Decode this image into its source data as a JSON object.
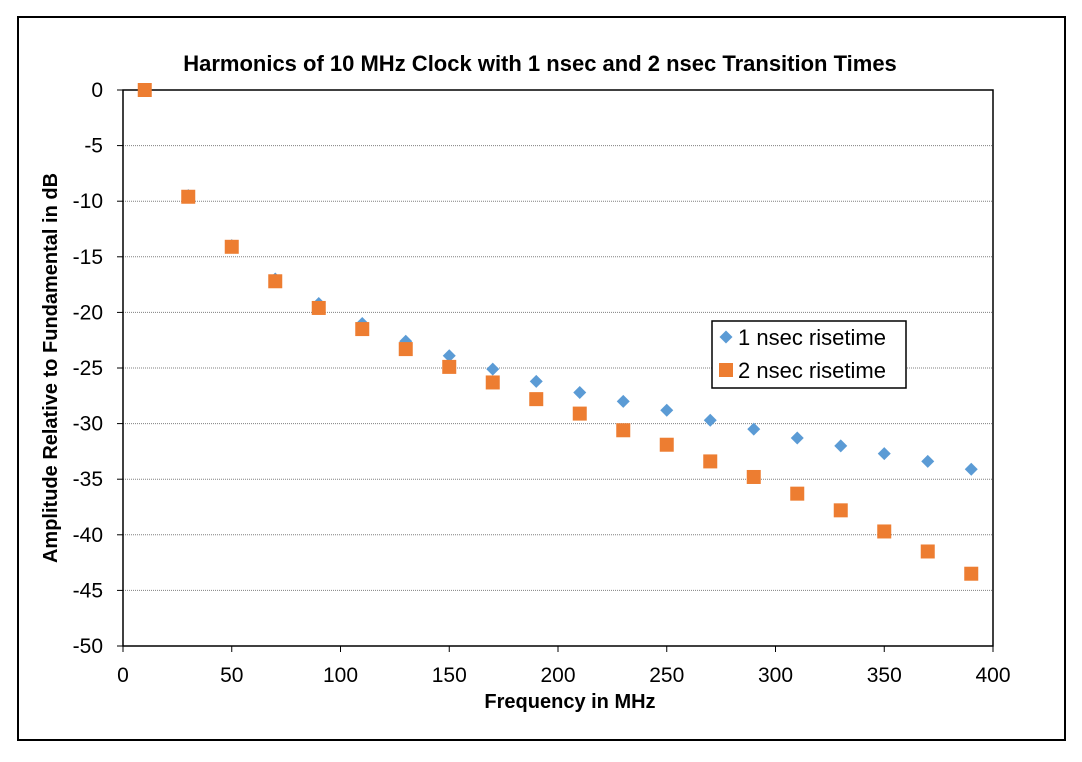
{
  "chart_data": {
    "type": "scatter",
    "title": "Harmonics of 10 MHz Clock with 1 nsec and 2 nsec Transition Times",
    "xlabel": "Frequency in MHz",
    "ylabel": "Amplitude Relative to Fundamental in dB",
    "xlim": [
      0,
      400
    ],
    "ylim": [
      -50,
      0
    ],
    "x_ticks": [
      "0",
      "50",
      "100",
      "150",
      "200",
      "250",
      "300",
      "350",
      "400"
    ],
    "y_ticks": [
      "0",
      "-5",
      "-10",
      "-15",
      "-20",
      "-25",
      "-30",
      "-35",
      "-40",
      "-45",
      "-50"
    ],
    "grid": "horizontal",
    "legend_position": "right",
    "series": [
      {
        "name": "1 nsec risetime",
        "marker": "diamond",
        "color": "#5B9BD5",
        "x": [
          10,
          30,
          50,
          70,
          90,
          110,
          130,
          150,
          170,
          190,
          210,
          230,
          250,
          270,
          290,
          310,
          330,
          350,
          370,
          390
        ],
        "y": [
          0,
          -9.5,
          -14.0,
          -17.0,
          -19.2,
          -21.0,
          -22.6,
          -23.9,
          -25.1,
          -26.2,
          -27.2,
          -28.0,
          -28.8,
          -29.7,
          -30.5,
          -31.3,
          -32.0,
          -32.7,
          -33.4,
          -34.1
        ]
      },
      {
        "name": "2 nsec risetime",
        "marker": "square",
        "color": "#ED7D31",
        "x": [
          10,
          30,
          50,
          70,
          90,
          110,
          130,
          150,
          170,
          190,
          210,
          230,
          250,
          270,
          290,
          310,
          330,
          350,
          370,
          390
        ],
        "y": [
          0,
          -9.6,
          -14.1,
          -17.2,
          -19.6,
          -21.5,
          -23.3,
          -24.9,
          -26.3,
          -27.8,
          -29.1,
          -30.6,
          -31.9,
          -33.4,
          -34.8,
          -36.3,
          -37.8,
          -39.7,
          -41.5,
          -43.5
        ]
      }
    ]
  }
}
